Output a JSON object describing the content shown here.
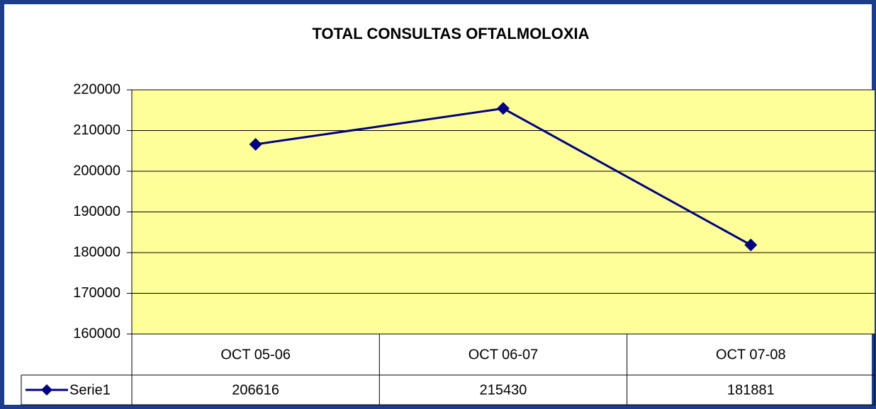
{
  "chart_data": {
    "type": "line",
    "title": "TOTAL CONSULTAS OFTALMOLOXIA",
    "categories": [
      "OCT 05-06",
      "OCT 06-07",
      "OCT 07-08"
    ],
    "series": [
      {
        "name": "Serie1",
        "color": "#000080",
        "values": [
          206616,
          215430,
          181881
        ]
      }
    ],
    "ylim": [
      160000,
      220000
    ],
    "yticks": [
      160000,
      170000,
      180000,
      190000,
      200000,
      210000,
      220000
    ],
    "grid": true
  }
}
